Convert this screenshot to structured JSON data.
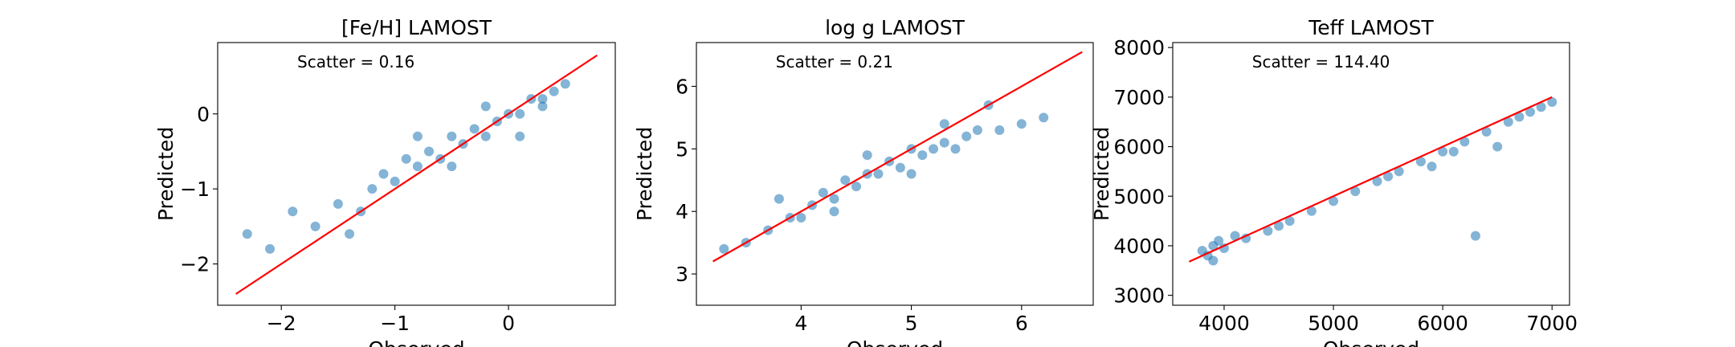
{
  "chart_data": [
    {
      "type": "scatter",
      "title": "[Fe/H] LAMOST",
      "xlabel": "Observed",
      "ylabel": "Predicted",
      "annotation": "Scatter = 0.16",
      "color": "#1f77b4",
      "x": [
        -2.3,
        -2.1,
        -1.9,
        -1.7,
        -1.5,
        -1.4,
        -1.2,
        -1.1,
        -1.0,
        -0.9,
        -0.8,
        -0.7,
        -0.6,
        -0.5,
        -0.4,
        -0.3,
        -0.2,
        -0.1,
        0,
        0.1,
        0.2,
        0.3,
        0.4,
        0.5,
        -0.8,
        -0.5,
        -0.2,
        0.1,
        0.3,
        -1.3
      ],
      "y": [
        -1.6,
        -1.8,
        -1.3,
        -1.5,
        -1.2,
        -1.6,
        -1.0,
        -0.8,
        -0.9,
        -0.6,
        -0.7,
        -0.5,
        -0.6,
        -0.3,
        -0.4,
        -0.2,
        -0.3,
        -0.1,
        0,
        0,
        0.2,
        0.2,
        0.3,
        0.4,
        -0.3,
        -0.7,
        0.1,
        -0.3,
        0.1,
        -1.3
      ],
      "line": {
        "color": "#ff0000",
        "x": [
          -2.4,
          0.78
        ],
        "y": [
          -2.4,
          0.78
        ]
      },
      "xlim": [
        -2.56,
        0.94
      ],
      "ylim": [
        -2.55,
        0.95
      ],
      "xticks": [
        {
          "value": -2,
          "label": "−2"
        },
        {
          "value": -1,
          "label": "−1"
        },
        0
      ],
      "yticks": [
        {
          "value": -2,
          "label": "−2"
        },
        {
          "value": -1,
          "label": "−1"
        },
        0
      ]
    },
    {
      "type": "scatter",
      "title": "log g LAMOST",
      "xlabel": "Observed",
      "ylabel": "Predicted",
      "annotation": "Scatter = 0.21",
      "color": "#1f77b4",
      "x": [
        3.3,
        3.5,
        3.7,
        3.9,
        4.0,
        4.1,
        4.2,
        4.3,
        4.4,
        4.5,
        4.6,
        4.7,
        4.8,
        4.9,
        5.0,
        5.1,
        5.2,
        5.3,
        5.4,
        5.5,
        5.6,
        5.8,
        6.0,
        6.2,
        4.3,
        4.6,
        5.0,
        5.3,
        3.8,
        5.7
      ],
      "y": [
        3.4,
        3.5,
        3.7,
        3.9,
        3.9,
        4.1,
        4.3,
        4.2,
        4.5,
        4.4,
        4.6,
        4.6,
        4.8,
        4.7,
        5.0,
        4.9,
        5.0,
        5.1,
        5.0,
        5.2,
        5.3,
        5.3,
        5.4,
        5.5,
        4.0,
        4.9,
        4.6,
        5.4,
        4.2,
        5.7
      ],
      "line": {
        "color": "#ff0000",
        "x": [
          3.2,
          6.55
        ],
        "y": [
          3.2,
          6.55
        ]
      },
      "xlim": [
        3.05,
        6.65
      ],
      "ylim": [
        2.5,
        6.7
      ],
      "xticks": [
        4,
        5,
        6
      ],
      "yticks": [
        3,
        4,
        5,
        6
      ]
    },
    {
      "type": "scatter",
      "title": "Teff LAMOST",
      "xlabel": "Observed",
      "ylabel": "Predicted",
      "annotation": "Scatter = 114.40",
      "color": "#1f77b4",
      "x": [
        3800,
        3850,
        3900,
        3950,
        4000,
        4200,
        4400,
        4600,
        4800,
        5000,
        5200,
        5400,
        5600,
        5800,
        6000,
        6200,
        6400,
        6600,
        6800,
        7000,
        3900,
        4500,
        5500,
        6100,
        6300,
        6900,
        5900,
        4100,
        6500,
        6700
      ],
      "y": [
        3900,
        3800,
        4000,
        4100,
        3950,
        4150,
        4300,
        4500,
        4700,
        4900,
        5100,
        5300,
        5500,
        5700,
        5900,
        6100,
        6300,
        6500,
        6700,
        6900,
        3700,
        4400,
        5400,
        5900,
        4200,
        6800,
        5600,
        4200,
        6000,
        6600
      ],
      "line": {
        "color": "#ff0000",
        "x": [
          3680,
          7000
        ],
        "y": [
          3680,
          7000
        ]
      },
      "xlim": [
        3530,
        7160
      ],
      "ylim": [
        2800,
        8100
      ],
      "xticks": [
        4000,
        5000,
        6000,
        7000
      ],
      "yticks": [
        3000,
        4000,
        5000,
        6000,
        7000,
        8000
      ]
    }
  ]
}
